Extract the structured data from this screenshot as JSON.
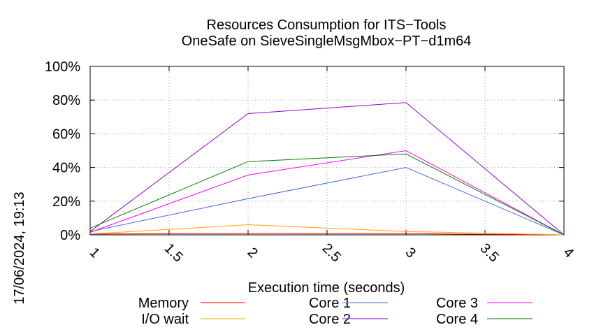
{
  "chart_data": {
    "type": "line",
    "title": "Resources Consumption for ITS−Tools",
    "subtitle": "OneSafe on SieveSingleMsgMbox−PT−d1m64",
    "xlabel": "Execution time (seconds)",
    "ylabel": "",
    "timestamp": "17/06/2024, 19:13",
    "xlim": [
      1,
      4
    ],
    "ylim": [
      0,
      100
    ],
    "x_ticks": [
      "1",
      "1.5",
      "2",
      "2.5",
      "3",
      "3.5",
      "4"
    ],
    "x_tick_values": [
      1,
      1.5,
      2,
      2.5,
      3,
      3.5,
      4
    ],
    "y_ticks": [
      "0%",
      "20%",
      "40%",
      "60%",
      "80%",
      "100%"
    ],
    "y_tick_values": [
      0,
      20,
      40,
      60,
      80,
      100
    ],
    "grid": true,
    "legend_position": "bottom",
    "series": [
      {
        "name": "Memory",
        "color": "#ff0000",
        "x": [
          1,
          2,
          3,
          4
        ],
        "values": [
          0.5,
          0.8,
          0.7,
          0
        ]
      },
      {
        "name": "I/O wait",
        "color": "#ffa500",
        "x": [
          1,
          2,
          3,
          4
        ],
        "values": [
          0.5,
          6,
          2,
          0
        ]
      },
      {
        "name": "Core 1",
        "color": "#4169e1",
        "x": [
          1,
          2,
          3,
          4
        ],
        "values": [
          2,
          21.5,
          40,
          0
        ]
      },
      {
        "name": "Core 2",
        "color": "#9400d3",
        "x": [
          1,
          2,
          3,
          4
        ],
        "values": [
          2,
          72,
          78.5,
          0
        ]
      },
      {
        "name": "Core 3",
        "color": "#ff00ff",
        "x": [
          1,
          2,
          3,
          4
        ],
        "values": [
          1.5,
          35.5,
          50,
          0
        ]
      },
      {
        "name": "Core 4",
        "color": "#008000",
        "x": [
          1,
          2,
          3,
          4
        ],
        "values": [
          4,
          43.5,
          48,
          0
        ]
      }
    ]
  }
}
